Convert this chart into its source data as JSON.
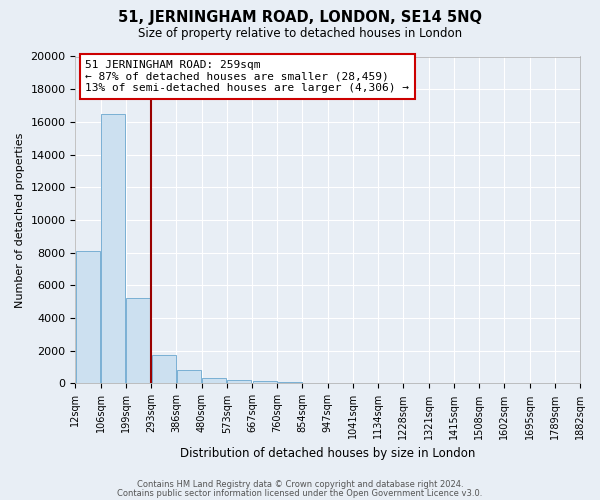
{
  "title": "51, JERNINGHAM ROAD, LONDON, SE14 5NQ",
  "subtitle": "Size of property relative to detached houses in London",
  "xlabel": "Distribution of detached houses by size in London",
  "ylabel": "Number of detached properties",
  "bar_values": [
    8100,
    16500,
    5200,
    1750,
    800,
    350,
    200,
    150,
    100,
    50,
    30,
    20,
    15,
    10,
    8,
    6,
    5,
    4,
    3,
    2
  ],
  "bin_labels": [
    "12sqm",
    "106sqm",
    "199sqm",
    "293sqm",
    "386sqm",
    "480sqm",
    "573sqm",
    "667sqm",
    "760sqm",
    "854sqm",
    "947sqm",
    "1041sqm",
    "1134sqm",
    "1228sqm",
    "1321sqm",
    "1415sqm",
    "1508sqm",
    "1602sqm",
    "1695sqm",
    "1789sqm",
    "1882sqm"
  ],
  "bar_color": "#cce0f0",
  "bar_edge_color": "#7ab0d4",
  "vline_color": "#990000",
  "annotation_line1": "51 JERNINGHAM ROAD: 259sqm",
  "annotation_line2": "← 87% of detached houses are smaller (28,459)",
  "annotation_line3": "13% of semi-detached houses are larger (4,306) →",
  "ylim": [
    0,
    20000
  ],
  "yticks": [
    0,
    2000,
    4000,
    6000,
    8000,
    10000,
    12000,
    14000,
    16000,
    18000,
    20000
  ],
  "background_color": "#e8eef5",
  "plot_bg_color": "#e8eef5",
  "grid_color": "#ffffff",
  "footer_line1": "Contains HM Land Registry data © Crown copyright and database right 2024.",
  "footer_line2": "Contains public sector information licensed under the Open Government Licence v3.0."
}
